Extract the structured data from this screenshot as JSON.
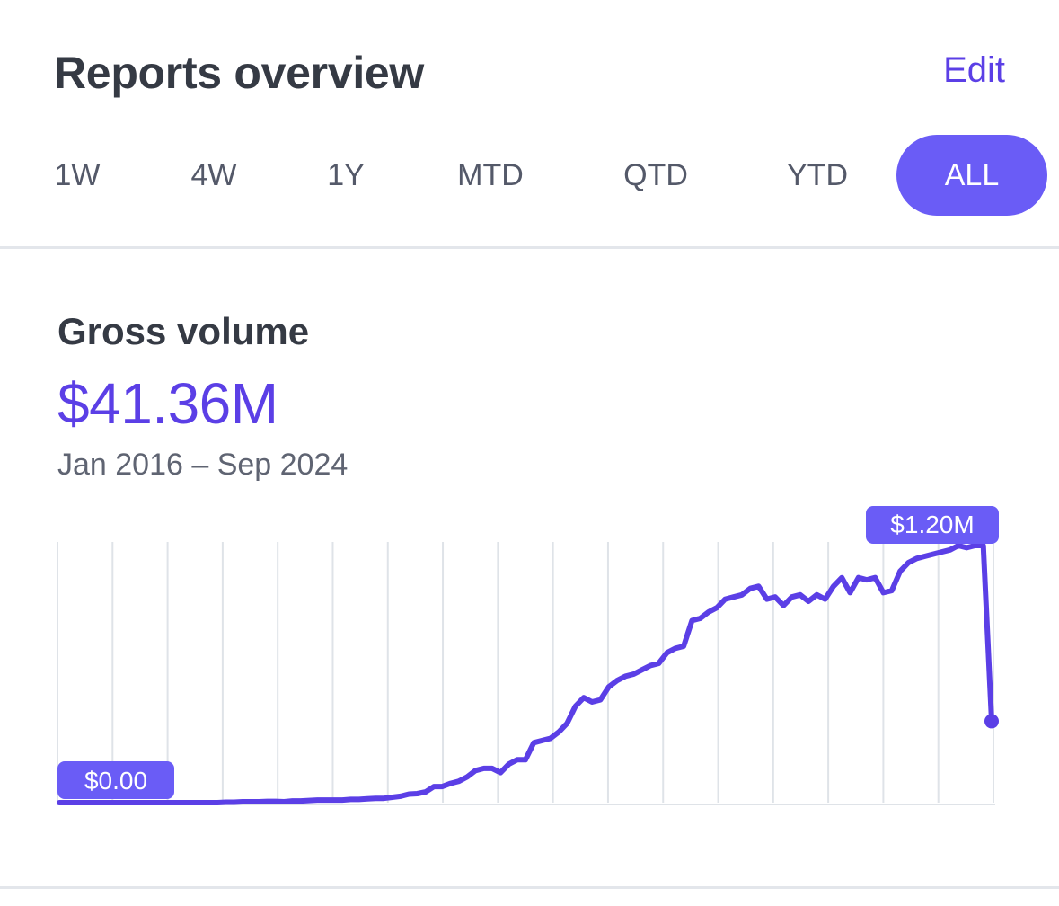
{
  "header": {
    "title": "Reports overview",
    "edit_label": "Edit"
  },
  "ranges": [
    {
      "label": "1W",
      "active": false
    },
    {
      "label": "4W",
      "active": false
    },
    {
      "label": "1Y",
      "active": false
    },
    {
      "label": "MTD",
      "active": false
    },
    {
      "label": "QTD",
      "active": false
    },
    {
      "label": "YTD",
      "active": false
    },
    {
      "label": "ALL",
      "active": true
    }
  ],
  "widget": {
    "title": "Gross volume",
    "value": "$41.36M",
    "date_range": "Jan 2016 – Sep 2024"
  },
  "colors": {
    "accent": "#5b3fe6",
    "active_tab": "#6a5cf6",
    "line": "#5b3fe6",
    "grid": "#dfe3e8",
    "label_bg": "#6a5cf6"
  },
  "chart_data": {
    "type": "line",
    "x_range": [
      "Jan 2016",
      "Sep 2024"
    ],
    "ylim": [
      0,
      1.2
    ],
    "y_unit": "$M",
    "grid": "vertical",
    "max_label": "$1.20M",
    "min_label": "$0.00",
    "series": [
      {
        "values": [
          0,
          0,
          0,
          0,
          0,
          0,
          0,
          0,
          0,
          0,
          0,
          0,
          0,
          0,
          0,
          0,
          0,
          0,
          0,
          0,
          0.002,
          0.002,
          0.004,
          0.004,
          0.004,
          0.006,
          0.006,
          0.004,
          0.008,
          0.008,
          0.01,
          0.012,
          0.012,
          0.012,
          0.012,
          0.015,
          0.015,
          0.018,
          0.02,
          0.02,
          0.025,
          0.03,
          0.04,
          0.042,
          0.05,
          0.075,
          0.075,
          0.09,
          0.1,
          0.12,
          0.15,
          0.16,
          0.16,
          0.14,
          0.18,
          0.2,
          0.2,
          0.28,
          0.29,
          0.3,
          0.33,
          0.37,
          0.45,
          0.49,
          0.47,
          0.48,
          0.54,
          0.57,
          0.59,
          0.6,
          0.62,
          0.64,
          0.65,
          0.7,
          0.72,
          0.73,
          0.85,
          0.86,
          0.89,
          0.91,
          0.95,
          0.96,
          0.97,
          1.0,
          1.01,
          0.95,
          0.96,
          0.92,
          0.96,
          0.97,
          0.94,
          0.97,
          0.95,
          1.01,
          1.05,
          0.98,
          1.05,
          1.04,
          1.05,
          0.98,
          0.99,
          1.08,
          1.12,
          1.14,
          1.15,
          1.16,
          1.17,
          1.18,
          1.2,
          1.19,
          1.2,
          1.2,
          0.38
        ]
      }
    ]
  }
}
